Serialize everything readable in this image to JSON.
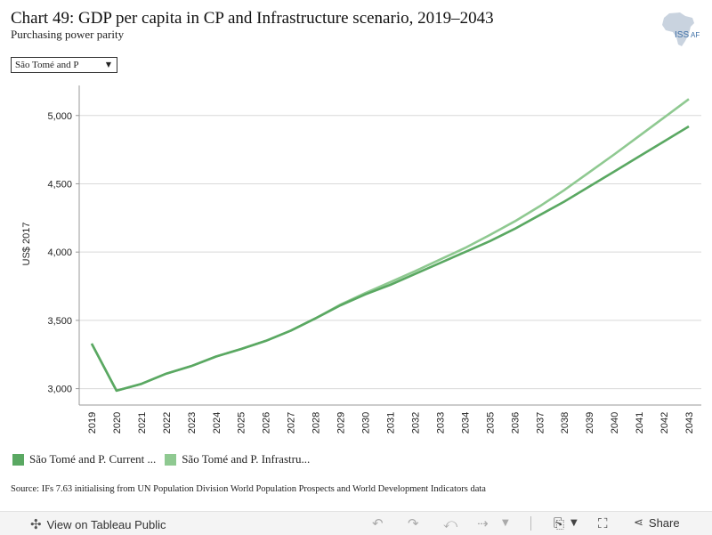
{
  "header": {
    "title": "Chart 49: GDP per capita in CP and Infrastructure scenario, 2019–2043",
    "subtitle": "Purchasing power parity",
    "logo_text": "ISS",
    "logo_text2": "AF"
  },
  "filter": {
    "selected": "São Tomé and P"
  },
  "legend": [
    {
      "label": "São Tomé and P. Current ...",
      "color": "#5aa862"
    },
    {
      "label": "São Tomé and P. Infrastru...",
      "color": "#8fc991"
    }
  ],
  "source": "Source: IFs 7.63 initialising from UN Population Division World Population Prospects and World Development Indicators data",
  "footer": {
    "view_label": "View on Tableau Public",
    "share_label": "Share"
  },
  "chart_data": {
    "type": "line",
    "title": "Chart 49: GDP per capita in CP and Infrastructure scenario, 2019–2043",
    "ylabel": "US$ 2017",
    "xlabel": "",
    "ylim": [
      2880,
      5220
    ],
    "yticks": [
      3000,
      3500,
      4000,
      4500,
      5000
    ],
    "ytick_labels": [
      "3,000",
      "3,500",
      "4,000",
      "4,500",
      "5,000"
    ],
    "grid": "horizontal",
    "legend_position": "bottom",
    "x": [
      2019,
      2020,
      2021,
      2022,
      2023,
      2024,
      2025,
      2026,
      2027,
      2028,
      2029,
      2030,
      2031,
      2032,
      2033,
      2034,
      2035,
      2036,
      2037,
      2038,
      2039,
      2040,
      2041,
      2042,
      2043
    ],
    "series": [
      {
        "name": "São Tomé and P. Current ...",
        "color": "#5aa862",
        "values": [
          3330,
          2985,
          3035,
          3110,
          3165,
          3235,
          3290,
          3350,
          3425,
          3515,
          3610,
          3690,
          3760,
          3840,
          3920,
          4000,
          4080,
          4170,
          4270,
          4370,
          4480,
          4590,
          4700,
          4810,
          4920
        ]
      },
      {
        "name": "São Tomé and P. Infrastru...",
        "color": "#8fc991",
        "values": [
          3330,
          2985,
          3035,
          3110,
          3165,
          3235,
          3290,
          3350,
          3425,
          3515,
          3615,
          3700,
          3780,
          3860,
          3945,
          4030,
          4125,
          4225,
          4335,
          4455,
          4585,
          4715,
          4850,
          4985,
          5120
        ]
      }
    ]
  }
}
